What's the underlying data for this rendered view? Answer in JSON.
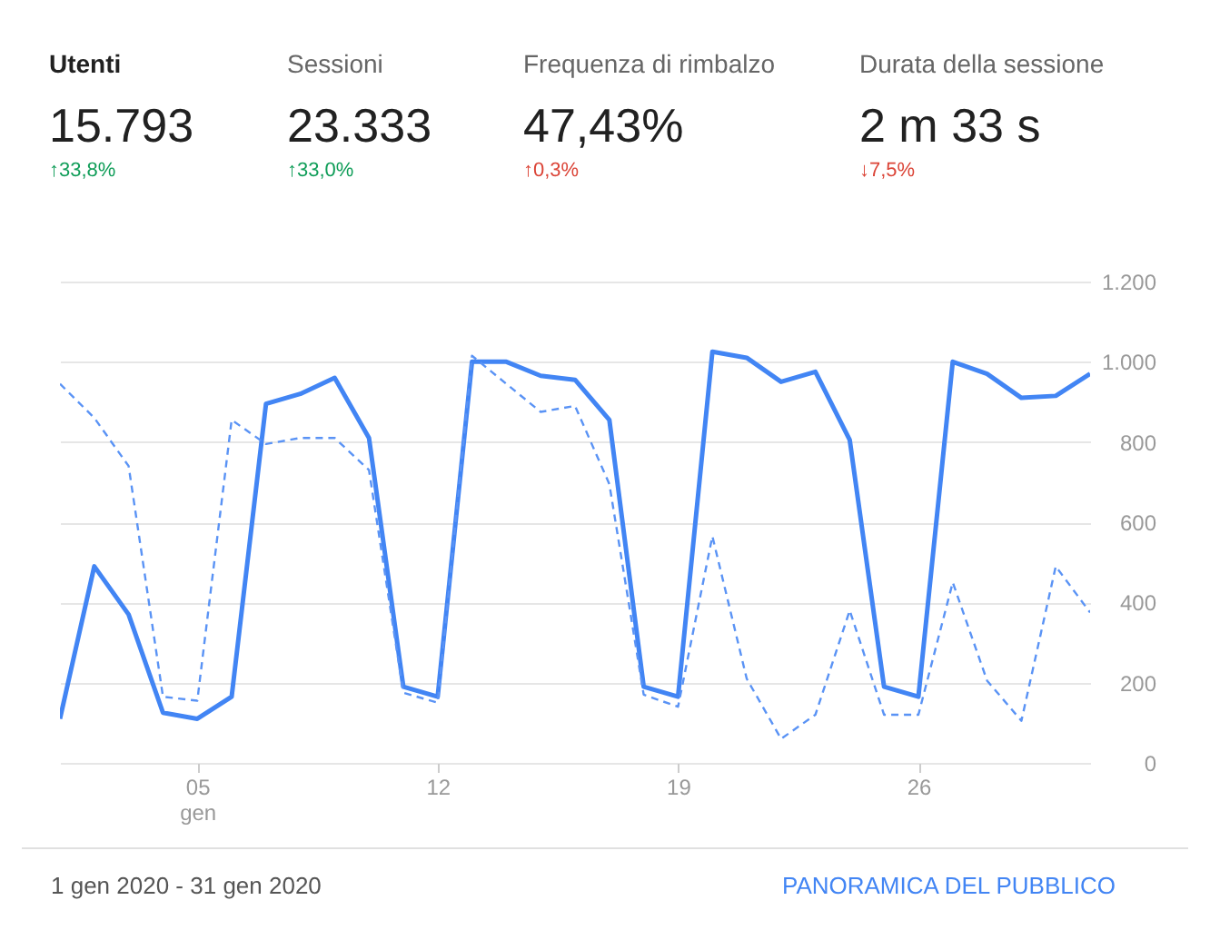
{
  "chart_data": {
    "type": "line",
    "x": [
      "2020-01-01",
      "2020-01-02",
      "2020-01-03",
      "2020-01-04",
      "2020-01-05",
      "2020-01-06",
      "2020-01-07",
      "2020-01-08",
      "2020-01-09",
      "2020-01-10",
      "2020-01-11",
      "2020-01-12",
      "2020-01-13",
      "2020-01-14",
      "2020-01-15",
      "2020-01-16",
      "2020-01-17",
      "2020-01-18",
      "2020-01-19",
      "2020-01-20",
      "2020-01-21",
      "2020-01-22",
      "2020-01-23",
      "2020-01-24",
      "2020-01-25",
      "2020-01-26",
      "2020-01-27",
      "2020-01-28",
      "2020-01-29",
      "2020-01-30",
      "2020-01-31"
    ],
    "series": [
      {
        "color": "#4285f4",
        "line_style": "solid",
        "values": [
          110,
          490,
          370,
          125,
          110,
          165,
          895,
          920,
          960,
          810,
          190,
          165,
          1000,
          1000,
          965,
          955,
          855,
          190,
          165,
          1025,
          1010,
          950,
          975,
          805,
          190,
          165,
          1000,
          970,
          910,
          915,
          970
        ]
      },
      {
        "color": "#5a93f5",
        "line_style": "dashed",
        "values": [
          945,
          860,
          740,
          165,
          155,
          855,
          795,
          810,
          810,
          730,
          175,
          150,
          1015,
          945,
          875,
          890,
          695,
          170,
          140,
          565,
          210,
          60,
          120,
          380,
          120,
          120,
          450,
          205,
          105,
          490,
          375
        ]
      }
    ],
    "xlim": [
      "2020-01-01",
      "2020-01-31"
    ],
    "xticks": [
      {
        "value": "2020-01-05",
        "label": "05\ngen"
      },
      {
        "value": "2020-01-12",
        "label": "12"
      },
      {
        "value": "2020-01-19",
        "label": "19"
      },
      {
        "value": "2020-01-26",
        "label": "26"
      }
    ],
    "ylim": [
      0,
      1200
    ],
    "yticks": [
      0,
      200,
      400,
      600,
      800,
      {
        "value": 1000,
        "label": "1.000"
      },
      {
        "value": 1200,
        "label": "1.200"
      }
    ],
    "grid": "y",
    "annotations": [
      "Utenti",
      "15.793",
      "↑33,8%",
      "Sessioni",
      "23.333",
      "↑33,0%",
      "Frequenza di rimbalzo",
      "47,43%",
      "↑0,3%",
      "Durata della sessione",
      "2 m 33 s",
      "↓7,5%",
      "1 gen 2020 - 31 gen 2020",
      "PANORAMICA DEL PUBBLICO"
    ]
  }
}
